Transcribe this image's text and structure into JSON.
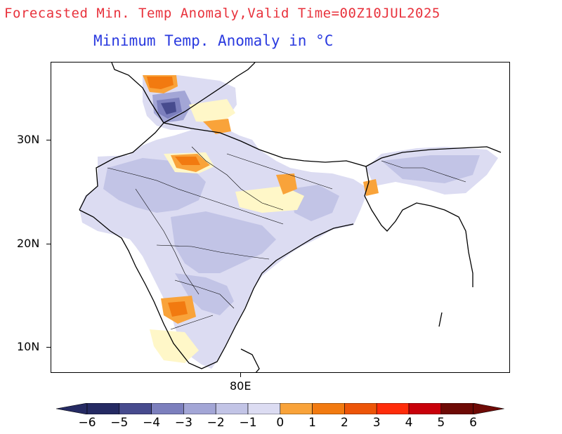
{
  "header": {
    "title": "Forecasted Min. Temp Anomaly,Valid Time=00Z10JUL2025",
    "subtitle": "Minimum Temp. Anomaly in °C"
  },
  "axes": {
    "y_ticks": [
      "30N",
      "20N",
      "10N"
    ],
    "x_ticks": [
      "80E"
    ]
  },
  "colorbar": {
    "labels": [
      "−6",
      "−5",
      "−4",
      "−3",
      "−2",
      "−1",
      "0",
      "1",
      "2",
      "3",
      "4",
      "5",
      "6"
    ],
    "colors": [
      "#252a63",
      "#474b8e",
      "#7c7fbd",
      "#a3a6d6",
      "#c2c4e6",
      "#dcdcf2",
      "#fff7c8",
      "#f9a33a",
      "#f27a10",
      "#ed5508",
      "#ff2c0a",
      "#c8000a",
      "#6e0a06"
    ]
  }
}
